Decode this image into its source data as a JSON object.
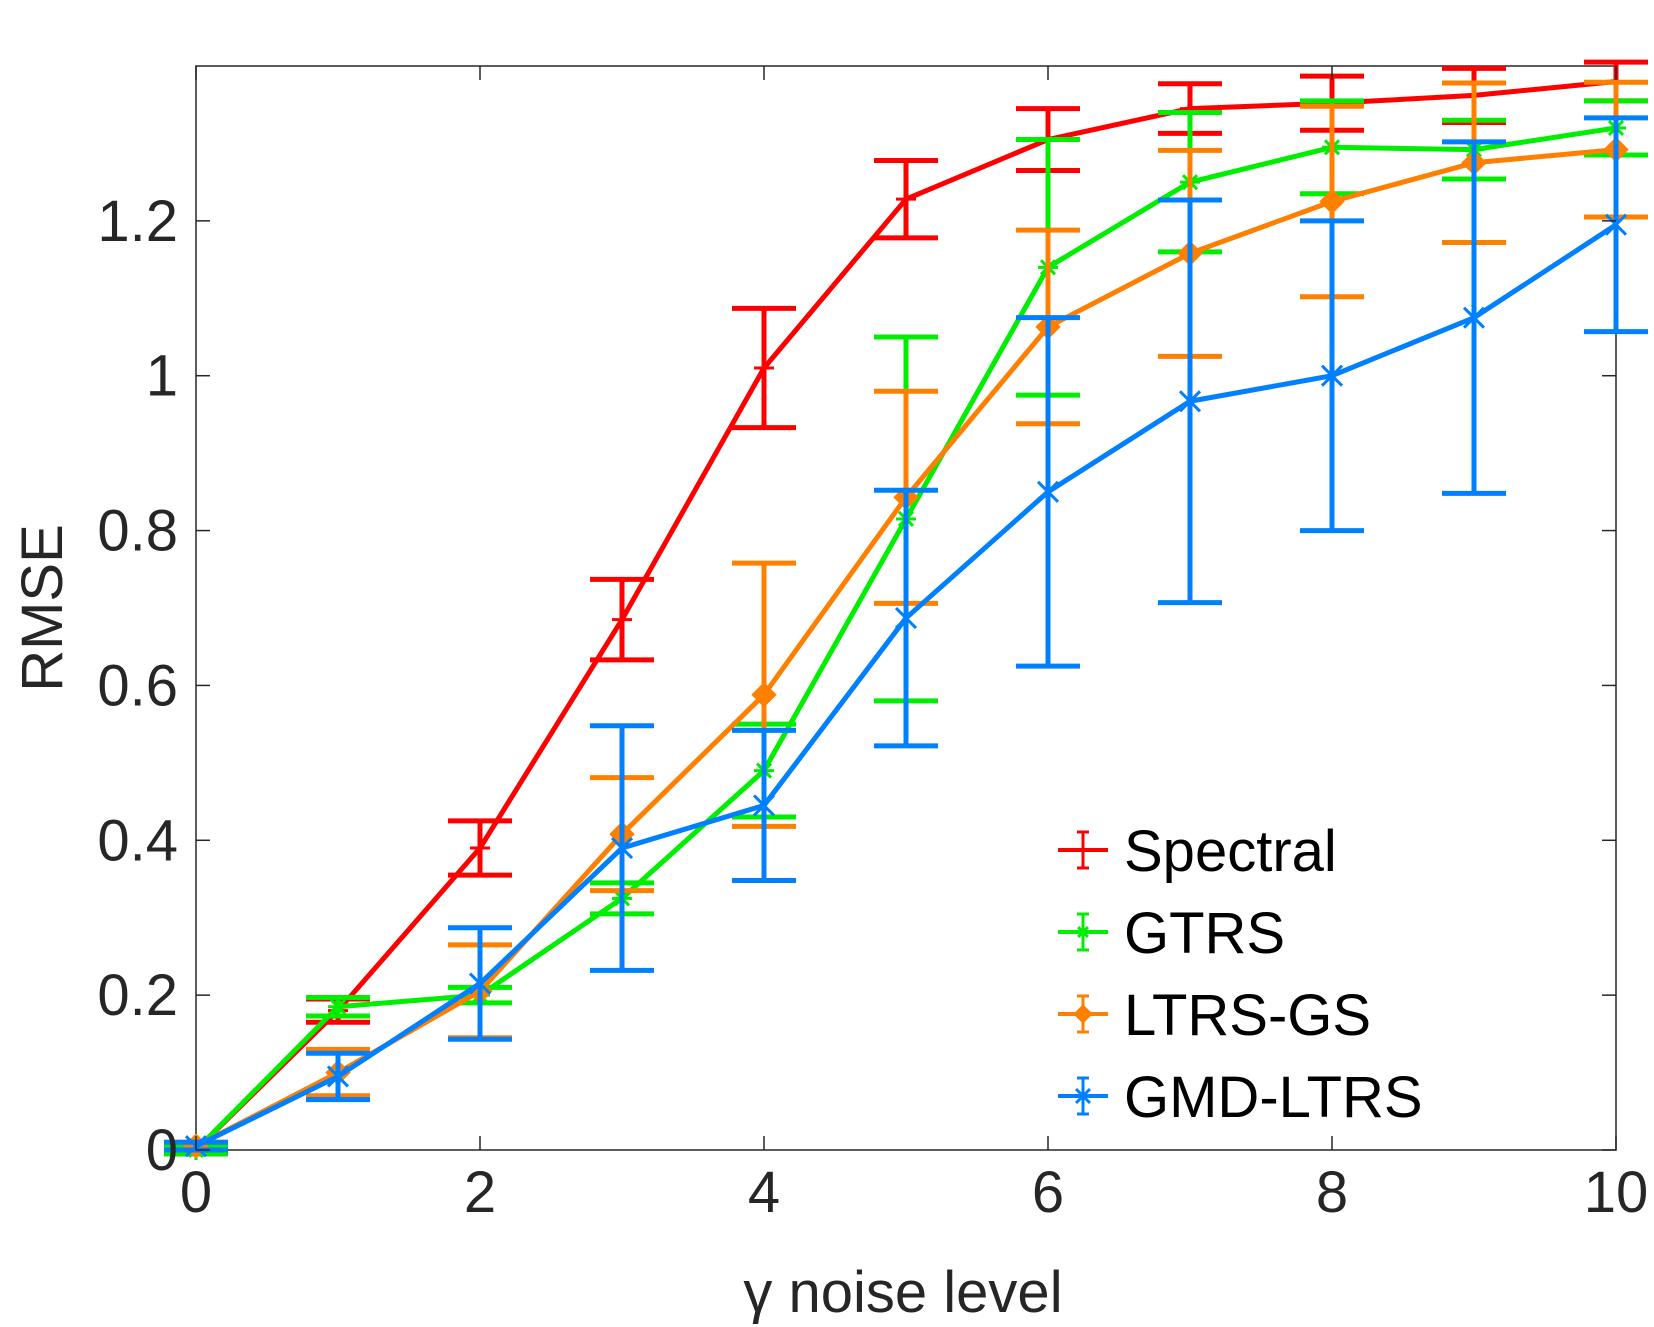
{
  "chart_data": {
    "type": "line",
    "title": "",
    "xlabel": "γ noise level",
    "ylabel": "RMSE",
    "xlim": [
      0,
      10
    ],
    "ylim": [
      0,
      1.4
    ],
    "xticks": [
      0,
      2,
      4,
      6,
      8,
      10
    ],
    "xtick_labels": [
      "0",
      "2",
      "4",
      "6",
      "8",
      "10"
    ],
    "yticks": [
      0,
      0.2,
      0.4,
      0.6,
      0.8,
      1,
      1.2
    ],
    "ytick_labels": [
      "0",
      "0.2",
      "0.4",
      "0.6",
      "0.8",
      "1",
      "1.2"
    ],
    "grid": false,
    "legend_position": "bottom-right",
    "x": [
      0,
      1,
      2,
      3,
      4,
      5,
      6,
      7,
      8,
      9,
      10
    ],
    "series": [
      {
        "name": "Spectral",
        "color": "#ff0000",
        "marker": "plus",
        "values": [
          0.0,
          0.18,
          0.39,
          0.685,
          1.01,
          1.228,
          1.305,
          1.345,
          1.352,
          1.362,
          1.38
        ],
        "err": [
          0.005,
          0.015,
          0.035,
          0.052,
          0.077,
          0.05,
          0.04,
          0.032,
          0.035,
          0.035,
          0.025
        ]
      },
      {
        "name": "GTRS",
        "color": "#00ee00",
        "marker": "asterisk",
        "values": [
          0.0,
          0.185,
          0.2,
          0.325,
          0.49,
          0.815,
          1.14,
          1.25,
          1.295,
          1.292,
          1.32
        ],
        "err": [
          0.005,
          0.012,
          0.01,
          0.02,
          0.06,
          0.235,
          0.165,
          0.09,
          0.06,
          0.038,
          0.035
        ]
      },
      {
        "name": "LTRS-GS",
        "color": "#ff8000",
        "marker": "diamond",
        "values": [
          0.005,
          0.1,
          0.205,
          0.408,
          0.588,
          0.843,
          1.063,
          1.158,
          1.225,
          1.275,
          1.292
        ],
        "err": [
          0.005,
          0.03,
          0.06,
          0.073,
          0.17,
          0.137,
          0.125,
          0.133,
          0.123,
          0.103,
          0.087
        ]
      },
      {
        "name": "GMD-LTRS",
        "color": "#0080ff",
        "marker": "cross",
        "values": [
          0.005,
          0.095,
          0.215,
          0.39,
          0.445,
          0.687,
          0.85,
          0.967,
          1.0,
          1.075,
          1.195
        ],
        "err": [
          0.005,
          0.03,
          0.072,
          0.158,
          0.097,
          0.165,
          0.225,
          0.26,
          0.2,
          0.227,
          0.138
        ]
      }
    ]
  }
}
